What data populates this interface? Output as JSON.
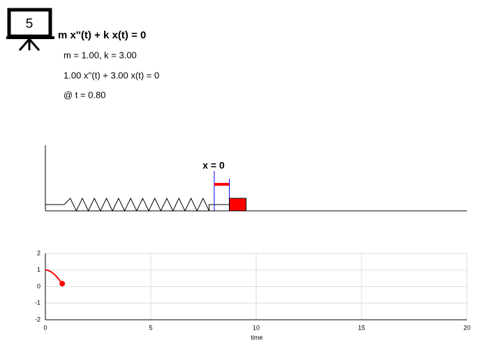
{
  "icon_label": "5",
  "equation": "m x''(t) + k x(t) = 0",
  "params": "m = 1.00, k = 3.00",
  "instance": "1.00 x''(t) + 3.00 x(t) = 0",
  "time_label": "@ t = 0.80",
  "spring": {
    "label": "x = 0"
  },
  "chart_data": {
    "type": "line",
    "x_label": "time",
    "xlim": [
      0,
      20
    ],
    "ylim": [
      -2,
      2
    ],
    "xticks": [
      0,
      5,
      10,
      15,
      20
    ],
    "yticks": [
      -2,
      -1,
      0,
      1,
      2
    ],
    "grid": true,
    "series": [
      {
        "color": "#ff0000",
        "x": [
          0,
          0.1,
          0.2,
          0.3,
          0.4,
          0.5,
          0.6,
          0.7,
          0.8
        ],
        "values": [
          1,
          0.985,
          0.94,
          0.867,
          0.77,
          0.65,
          0.5,
          0.34,
          0.18
        ]
      }
    ]
  }
}
